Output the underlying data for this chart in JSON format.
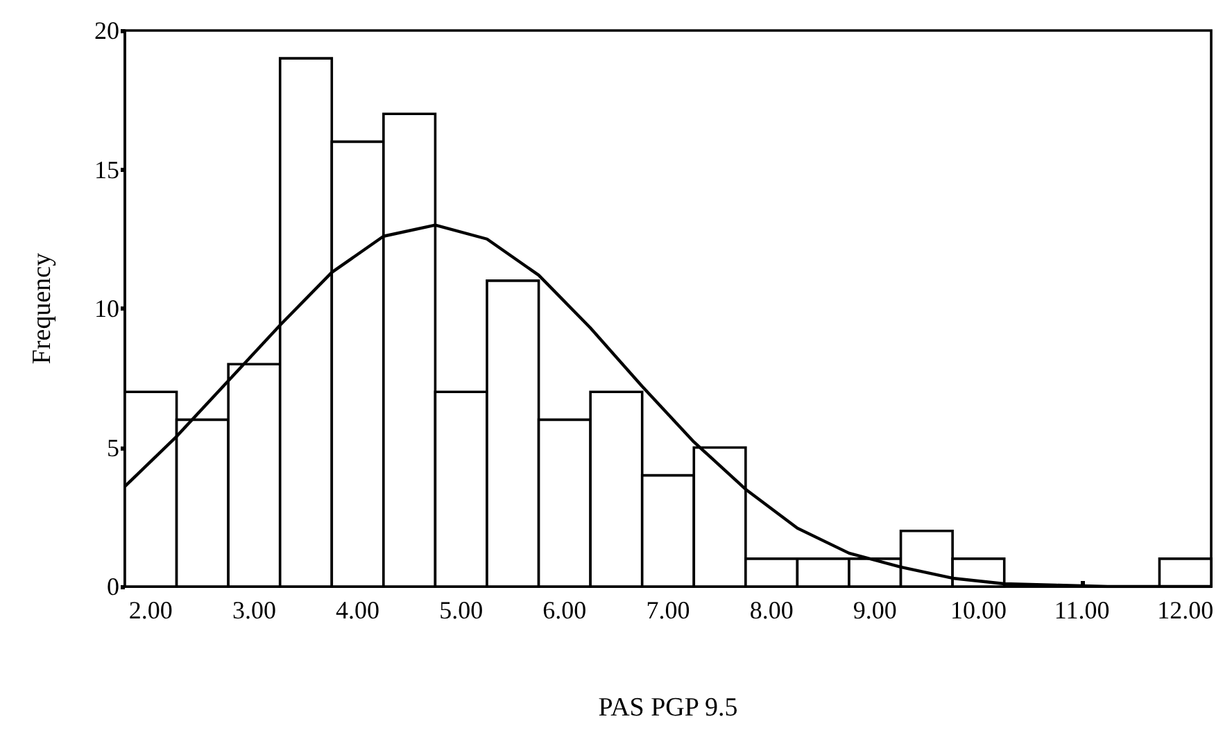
{
  "chart_data": {
    "type": "histogram",
    "xlabel": "PAS PGP 9.5",
    "ylabel": "Frequency",
    "bins": [
      1.75,
      2.25,
      2.75,
      3.25,
      3.75,
      4.25,
      4.75,
      5.25,
      5.75,
      6.25,
      6.75,
      7.25,
      7.75,
      8.25,
      8.75,
      9.25,
      9.75,
      10.25,
      10.75,
      11.25,
      11.75,
      12.25
    ],
    "values": [
      7,
      6,
      8,
      19,
      16,
      17,
      7,
      11,
      6,
      7,
      4,
      5,
      1,
      1,
      1,
      2,
      1,
      0,
      0,
      0,
      1
    ],
    "color": "#ffffff",
    "series": [
      {
        "type": "line",
        "color": "#000000",
        "x": [
          1.75,
          2.25,
          2.75,
          3.25,
          3.75,
          4.25,
          4.75,
          5.25,
          5.75,
          6.25,
          6.75,
          7.25,
          7.75,
          8.25,
          8.75,
          9.25,
          9.75,
          10.25,
          10.75,
          11.25,
          12.25
        ],
        "values": [
          3.6,
          5.4,
          7.4,
          9.4,
          11.3,
          12.6,
          13,
          12.5,
          11.2,
          9.3,
          7.2,
          5.2,
          3.5,
          2.1,
          1.2,
          0.7,
          0.3,
          0.1,
          0.05,
          0,
          0
        ]
      }
    ],
    "marker": "none",
    "grid": false,
    "xlim": [
      1.75,
      12.25
    ],
    "xticks": [
      {
        "value": 2,
        "label": "2.00"
      },
      {
        "value": 3,
        "label": "3.00"
      },
      {
        "value": 4,
        "label": "4.00"
      },
      {
        "value": 5,
        "label": "5.00"
      },
      {
        "value": 6,
        "label": "6.00"
      },
      {
        "value": 7,
        "label": "7.00"
      },
      {
        "value": 8,
        "label": "8.00"
      },
      {
        "value": 9,
        "label": "9.00"
      },
      {
        "value": 10,
        "label": "10.00"
      },
      {
        "value": 11,
        "label": "11.00"
      },
      {
        "value": 12,
        "label": "12.00"
      }
    ],
    "ylim": [
      0,
      20
    ],
    "yticks": [
      0,
      5,
      10,
      15,
      20
    ]
  }
}
